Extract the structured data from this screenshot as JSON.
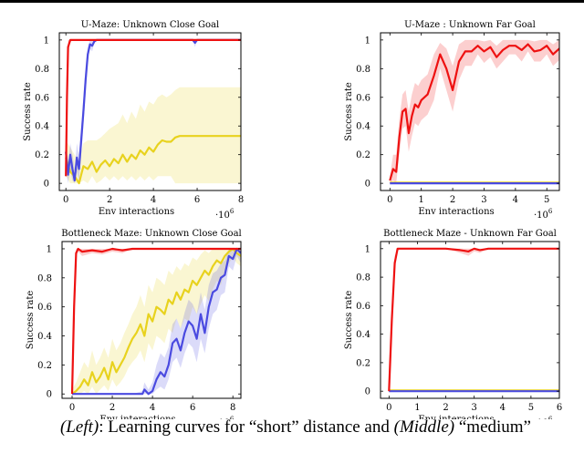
{
  "caption": {
    "left_tag": "(Left)",
    "left_text": ": Learning curves for “short” distance and ",
    "middle_tag": "(Middle)",
    "middle_text": " “medium”"
  },
  "chart_data": [
    {
      "type": "line",
      "title": "U-Maze: Unknown Close Goal",
      "xlabel": "Env interactions",
      "ylabel": "Success rate",
      "x_multiplier": "·10^6",
      "xlim": [
        -0.3,
        8
      ],
      "ylim": [
        -0.05,
        1.05
      ],
      "xticks": [
        0,
        2,
        4,
        6,
        8
      ],
      "yticks": [
        0,
        0.2,
        0.4,
        0.6,
        0.8,
        1
      ],
      "grid": false,
      "series": [
        {
          "color": "#ee1111",
          "x": [
            0,
            0.05,
            0.1,
            0.2,
            0.35,
            8
          ],
          "y": [
            0.05,
            0.6,
            0.95,
            1,
            1,
            1
          ],
          "lower": [
            0.02,
            0.5,
            0.9,
            0.99,
            1,
            1
          ],
          "upper": [
            0.1,
            0.7,
            1,
            1,
            1,
            1
          ]
        },
        {
          "color": "#4a4ae0",
          "x": [
            0,
            0.1,
            0.2,
            0.3,
            0.4,
            0.5,
            0.6,
            0.7,
            0.8,
            0.9,
            1.0,
            1.1,
            1.2,
            1.3,
            1.4,
            1.5,
            2,
            3,
            4,
            5,
            5.8,
            5.9,
            6.0,
            6.1,
            7,
            8
          ],
          "y": [
            0.22,
            0.06,
            0.2,
            0.1,
            0.02,
            0.18,
            0.1,
            0.3,
            0.5,
            0.72,
            0.9,
            0.97,
            0.96,
            0.99,
            1,
            1,
            1,
            1,
            1,
            1,
            1,
            0.98,
            1,
            1,
            1,
            1
          ],
          "lower": [
            0.1,
            0.0,
            0.1,
            0.02,
            0.0,
            0.08,
            0.02,
            0.2,
            0.4,
            0.62,
            0.85,
            0.94,
            0.92,
            0.98,
            1,
            1,
            1,
            1,
            1,
            1,
            1,
            0.95,
            1,
            1,
            1,
            1
          ],
          "upper": [
            0.3,
            0.14,
            0.28,
            0.2,
            0.1,
            0.28,
            0.2,
            0.4,
            0.6,
            0.82,
            0.95,
            1,
            1,
            1,
            1,
            1,
            1,
            1,
            1,
            1,
            1,
            1,
            1,
            1,
            1,
            1
          ]
        },
        {
          "color": "#e8d21e",
          "x": [
            0,
            0.2,
            0.4,
            0.6,
            0.8,
            1.0,
            1.2,
            1.4,
            1.6,
            1.8,
            2.0,
            2.2,
            2.4,
            2.6,
            2.8,
            3.0,
            3.2,
            3.4,
            3.6,
            3.8,
            4.0,
            4.2,
            4.4,
            4.6,
            4.8,
            5.0,
            5.2,
            6,
            7,
            8
          ],
          "y": [
            0.18,
            0.08,
            0.05,
            0.0,
            0.12,
            0.1,
            0.15,
            0.08,
            0.13,
            0.16,
            0.12,
            0.17,
            0.14,
            0.2,
            0.15,
            0.2,
            0.17,
            0.23,
            0.2,
            0.25,
            0.22,
            0.27,
            0.3,
            0.29,
            0.29,
            0.32,
            0.33,
            0.33,
            0.33,
            0.33
          ],
          "lower": [
            0.05,
            0.0,
            0.0,
            0.0,
            0.02,
            0.0,
            0.05,
            0.0,
            0.02,
            0.05,
            0.02,
            0.05,
            0.02,
            0.05,
            0.02,
            0.05,
            0.02,
            0.05,
            0.02,
            0.05,
            0.02,
            0.05,
            0.05,
            0.05,
            0.05,
            0.0,
            0.0,
            0.0,
            0.0,
            0.0
          ],
          "upper": [
            0.3,
            0.25,
            0.2,
            0.15,
            0.28,
            0.3,
            0.3,
            0.3,
            0.32,
            0.35,
            0.38,
            0.4,
            0.42,
            0.48,
            0.42,
            0.5,
            0.45,
            0.55,
            0.5,
            0.57,
            0.55,
            0.6,
            0.62,
            0.6,
            0.62,
            0.65,
            0.67,
            0.67,
            0.67,
            0.67
          ]
        }
      ]
    },
    {
      "type": "line",
      "title": "U-Maze : Unknown Far Goal",
      "xlabel": "Env interactions",
      "ylabel": "Success rate",
      "x_multiplier": "·10^6",
      "xlim": [
        -0.3,
        5.4
      ],
      "ylim": [
        -0.05,
        1.05
      ],
      "xticks": [
        0,
        1,
        2,
        3,
        4,
        5
      ],
      "yticks": [
        0,
        0.2,
        0.4,
        0.6,
        0.8,
        1
      ],
      "grid": false,
      "series": [
        {
          "color": "#ee1111",
          "x": [
            0,
            0.1,
            0.2,
            0.3,
            0.4,
            0.5,
            0.6,
            0.7,
            0.8,
            0.9,
            1.0,
            1.2,
            1.4,
            1.6,
            1.8,
            2.0,
            2.2,
            2.4,
            2.6,
            2.8,
            3.0,
            3.2,
            3.4,
            3.6,
            3.8,
            4.0,
            4.2,
            4.4,
            4.6,
            4.8,
            5.0,
            5.2,
            5.4
          ],
          "y": [
            0.02,
            0.1,
            0.08,
            0.32,
            0.5,
            0.52,
            0.35,
            0.47,
            0.55,
            0.53,
            0.58,
            0.62,
            0.75,
            0.9,
            0.8,
            0.65,
            0.85,
            0.92,
            0.92,
            0.96,
            0.92,
            0.95,
            0.88,
            0.93,
            0.96,
            0.96,
            0.93,
            0.97,
            0.92,
            0.93,
            0.96,
            0.9,
            0.94
          ],
          "lower": [
            0.0,
            0.02,
            0.0,
            0.2,
            0.38,
            0.4,
            0.22,
            0.33,
            0.42,
            0.4,
            0.44,
            0.48,
            0.58,
            0.8,
            0.65,
            0.5,
            0.72,
            0.82,
            0.82,
            0.9,
            0.84,
            0.88,
            0.8,
            0.85,
            0.9,
            0.9,
            0.85,
            0.92,
            0.85,
            0.85,
            0.9,
            0.82,
            0.86
          ],
          "upper": [
            0.05,
            0.2,
            0.2,
            0.45,
            0.62,
            0.65,
            0.5,
            0.62,
            0.7,
            0.68,
            0.72,
            0.76,
            0.9,
            0.98,
            0.94,
            0.82,
            0.97,
            1,
            1,
            1,
            0.99,
            1,
            0.96,
            1,
            1,
            1,
            1,
            1,
            0.99,
            1,
            1,
            0.97,
            1
          ]
        },
        {
          "color": "#4a4ae0",
          "x": [
            0,
            5.4
          ],
          "y": [
            0,
            0
          ],
          "lower": [
            0,
            0
          ],
          "upper": [
            0,
            0
          ]
        },
        {
          "color": "#e8d21e",
          "x": [
            0,
            5.4
          ],
          "y": [
            0.005,
            0.005
          ],
          "lower": [
            0,
            0
          ],
          "upper": [
            0.01,
            0.01
          ]
        }
      ]
    },
    {
      "type": "line",
      "title": "Bottleneck Maze: Unknown Close Goal",
      "xlabel": "Env interactions",
      "ylabel": "Success rate",
      "x_multiplier": "·10^6",
      "xlim": [
        -0.5,
        8.4
      ],
      "ylim": [
        -0.03,
        1.05
      ],
      "xticks": [
        0,
        2,
        4,
        6,
        8
      ],
      "yticks": [
        0,
        0.2,
        0.4,
        0.6,
        0.8,
        1
      ],
      "grid": false,
      "series": [
        {
          "color": "#ee1111",
          "x": [
            0,
            0.1,
            0.2,
            0.3,
            0.5,
            1,
            1.5,
            2,
            2.5,
            3,
            8.4
          ],
          "y": [
            0.0,
            0.6,
            0.97,
            1,
            0.98,
            0.99,
            0.98,
            1,
            0.99,
            1,
            1
          ],
          "lower": [
            0,
            0.5,
            0.94,
            0.98,
            0.95,
            0.97,
            0.96,
            0.98,
            0.97,
            1,
            1
          ],
          "upper": [
            0.02,
            0.7,
            1,
            1,
            1,
            1,
            1,
            1,
            1,
            1,
            1
          ]
        },
        {
          "color": "#4a4ae0",
          "x": [
            0,
            1,
            2,
            3,
            3.5,
            3.6,
            3.8,
            4.0,
            4.2,
            4.4,
            4.6,
            4.8,
            5.0,
            5.2,
            5.4,
            5.6,
            5.8,
            6.0,
            6.2,
            6.4,
            6.6,
            6.8,
            7.0,
            7.2,
            7.4,
            7.6,
            7.8,
            8.0,
            8.2,
            8.4
          ],
          "y": [
            0,
            0,
            0,
            0,
            0,
            0.03,
            0,
            0.02,
            0.1,
            0.15,
            0.12,
            0.2,
            0.35,
            0.38,
            0.3,
            0.42,
            0.5,
            0.47,
            0.38,
            0.55,
            0.42,
            0.6,
            0.7,
            0.72,
            0.8,
            0.82,
            0.95,
            0.93,
            1,
            0.97
          ],
          "lower": [
            0,
            0,
            0,
            0,
            0,
            0,
            0,
            0,
            0.03,
            0.05,
            0.03,
            0.1,
            0.22,
            0.25,
            0.18,
            0.28,
            0.35,
            0.32,
            0.22,
            0.38,
            0.28,
            0.45,
            0.55,
            0.58,
            0.68,
            0.7,
            0.88,
            0.85,
            0.95,
            0.9
          ],
          "upper": [
            0,
            0,
            0,
            0,
            0.02,
            0.08,
            0.03,
            0.08,
            0.2,
            0.28,
            0.25,
            0.32,
            0.48,
            0.52,
            0.45,
            0.56,
            0.65,
            0.62,
            0.55,
            0.7,
            0.58,
            0.75,
            0.83,
            0.85,
            0.9,
            0.92,
            1,
            1,
            1,
            1
          ]
        },
        {
          "color": "#e8d21e",
          "x": [
            0,
            0.2,
            0.4,
            0.6,
            0.8,
            1.0,
            1.2,
            1.4,
            1.6,
            1.8,
            2.0,
            2.2,
            2.4,
            2.6,
            2.8,
            3.0,
            3.2,
            3.4,
            3.6,
            3.8,
            4.0,
            4.2,
            4.4,
            4.6,
            4.8,
            5.0,
            5.2,
            5.4,
            5.6,
            5.8,
            6.0,
            6.2,
            6.4,
            6.6,
            6.8,
            7.0,
            7.2,
            7.4,
            7.6,
            7.8,
            8.0,
            8.2,
            8.4
          ],
          "y": [
            0,
            0.02,
            0.05,
            0.1,
            0.06,
            0.15,
            0.08,
            0.12,
            0.18,
            0.1,
            0.22,
            0.15,
            0.2,
            0.25,
            0.32,
            0.38,
            0.42,
            0.48,
            0.4,
            0.55,
            0.5,
            0.6,
            0.58,
            0.55,
            0.65,
            0.62,
            0.7,
            0.65,
            0.72,
            0.7,
            0.78,
            0.75,
            0.8,
            0.85,
            0.82,
            0.88,
            0.92,
            0.9,
            0.95,
            0.98,
            1,
            0.97,
            0.95
          ],
          "lower": [
            0,
            0,
            0,
            0.02,
            0,
            0.05,
            0,
            0.03,
            0.06,
            0.02,
            0.1,
            0.05,
            0.08,
            0.12,
            0.18,
            0.22,
            0.25,
            0.3,
            0.22,
            0.35,
            0.3,
            0.4,
            0.38,
            0.35,
            0.45,
            0.42,
            0.52,
            0.45,
            0.52,
            0.5,
            0.6,
            0.55,
            0.62,
            0.68,
            0.64,
            0.72,
            0.78,
            0.75,
            0.85,
            0.9,
            0.94,
            0.9,
            0.88
          ],
          "upper": [
            0.03,
            0.08,
            0.15,
            0.22,
            0.18,
            0.3,
            0.2,
            0.25,
            0.32,
            0.25,
            0.38,
            0.3,
            0.35,
            0.42,
            0.48,
            0.55,
            0.6,
            0.68,
            0.6,
            0.75,
            0.7,
            0.8,
            0.78,
            0.75,
            0.85,
            0.82,
            0.88,
            0.85,
            0.9,
            0.88,
            0.94,
            0.92,
            0.96,
            0.99,
            0.97,
            1,
            1,
            1,
            1,
            1,
            1,
            1,
            1
          ]
        }
      ]
    },
    {
      "type": "line",
      "title": "Bottleneck Maze - Unknown Far Goal",
      "xlabel": "Env interactions",
      "ylabel": "Success rate",
      "x_multiplier": "·10^6",
      "xlim": [
        -0.3,
        6
      ],
      "ylim": [
        -0.05,
        1.05
      ],
      "xticks": [
        0,
        1,
        2,
        3,
        4,
        5,
        6
      ],
      "yticks": [
        0,
        0.2,
        0.4,
        0.6,
        0.8,
        1
      ],
      "grid": false,
      "series": [
        {
          "color": "#ee1111",
          "x": [
            0,
            0.1,
            0.2,
            0.3,
            0.4,
            1,
            2,
            2.5,
            2.8,
            3.0,
            3.2,
            3.5,
            6
          ],
          "y": [
            0.0,
            0.5,
            0.9,
            1,
            1,
            1,
            1,
            0.99,
            0.98,
            1,
            0.99,
            1,
            1
          ],
          "lower": [
            0,
            0.4,
            0.85,
            0.98,
            1,
            1,
            1,
            0.97,
            0.95,
            0.98,
            0.97,
            1,
            1
          ],
          "upper": [
            0.02,
            0.6,
            0.95,
            1,
            1,
            1,
            1,
            1,
            1,
            1,
            1,
            1,
            1
          ]
        },
        {
          "color": "#4a4ae0",
          "x": [
            0,
            6
          ],
          "y": [
            0,
            0
          ],
          "lower": [
            0,
            0
          ],
          "upper": [
            0,
            0
          ]
        },
        {
          "color": "#e8d21e",
          "x": [
            0,
            6
          ],
          "y": [
            0.005,
            0.005
          ],
          "lower": [
            0,
            0
          ],
          "upper": [
            0.01,
            0.01
          ]
        }
      ]
    }
  ]
}
